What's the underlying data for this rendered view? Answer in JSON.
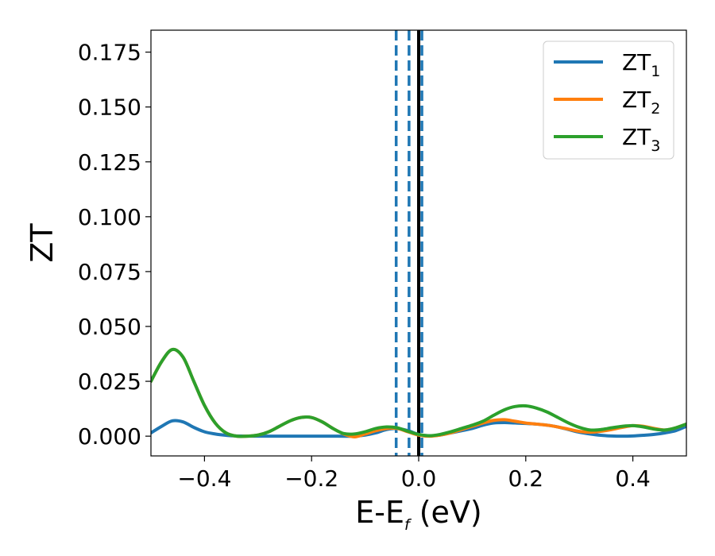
{
  "chart_data": {
    "type": "line",
    "xlabel": {
      "main": "E-E",
      "sub": "f",
      "suffix": " (eV)"
    },
    "ylabel": "ZT",
    "xlim": [
      -0.5,
      0.5
    ],
    "ylim": [
      -0.009,
      0.185
    ],
    "xticks": [
      -0.4,
      -0.2,
      0.0,
      0.2,
      0.4
    ],
    "xtick_labels": [
      "−0.4",
      "−0.2",
      "0.0",
      "0.2",
      "0.4"
    ],
    "yticks": [
      0.0,
      0.025,
      0.05,
      0.075,
      0.1,
      0.125,
      0.15,
      0.175
    ],
    "ytick_labels": [
      "0.000",
      "0.025",
      "0.050",
      "0.075",
      "0.100",
      "0.125",
      "0.150",
      "0.175"
    ],
    "legend_position": "top-right",
    "reference_lines": [
      {
        "x": -0.042,
        "style": "dashed",
        "color": "#1f77b4"
      },
      {
        "x": -0.018,
        "style": "dashed",
        "color": "#1f77b4"
      },
      {
        "x": 0.006,
        "style": "dashed",
        "color": "#1f77b4"
      },
      {
        "x": 0.0,
        "style": "solid",
        "color": "#000000"
      }
    ],
    "series": [
      {
        "name": "ZT",
        "sub": "1",
        "color": "#1f77b4",
        "x": [
          -0.5,
          -0.48,
          -0.46,
          -0.44,
          -0.42,
          -0.4,
          -0.38,
          -0.36,
          -0.34,
          -0.3,
          -0.25,
          -0.2,
          -0.15,
          -0.12,
          -0.1,
          -0.08,
          -0.06,
          -0.04,
          -0.02,
          0.0,
          0.02,
          0.04,
          0.06,
          0.08,
          0.1,
          0.12,
          0.14,
          0.16,
          0.18,
          0.2,
          0.22,
          0.24,
          0.26,
          0.28,
          0.3,
          0.32,
          0.34,
          0.36,
          0.38,
          0.4,
          0.42,
          0.44,
          0.46,
          0.48,
          0.5
        ],
        "y": [
          0.0015,
          0.0045,
          0.007,
          0.0065,
          0.004,
          0.002,
          0.001,
          0.0004,
          0.0001,
          0.0,
          0.0,
          0.0,
          0.0,
          0.0,
          0.0005,
          0.0015,
          0.003,
          0.0035,
          0.0025,
          0.0008,
          0.0002,
          0.0005,
          0.0015,
          0.0025,
          0.0035,
          0.005,
          0.006,
          0.0062,
          0.006,
          0.0058,
          0.0055,
          0.005,
          0.0042,
          0.003,
          0.0018,
          0.001,
          0.0004,
          0.0001,
          0.0,
          0.0001,
          0.0004,
          0.0008,
          0.0015,
          0.0025,
          0.0045
        ]
      },
      {
        "name": "ZT",
        "sub": "2",
        "color": "#ff7f0e",
        "x": [
          -0.5,
          -0.48,
          -0.46,
          -0.44,
          -0.42,
          -0.4,
          -0.38,
          -0.36,
          -0.34,
          -0.32,
          -0.3,
          -0.28,
          -0.26,
          -0.24,
          -0.22,
          -0.2,
          -0.18,
          -0.16,
          -0.14,
          -0.12,
          -0.1,
          -0.08,
          -0.06,
          -0.04,
          -0.02,
          0.0,
          0.02,
          0.04,
          0.06,
          0.08,
          0.1,
          0.12,
          0.14,
          0.16,
          0.18,
          0.2,
          0.22,
          0.24,
          0.26,
          0.28,
          0.3,
          0.32,
          0.34,
          0.36,
          0.38,
          0.4,
          0.42,
          0.44,
          0.46,
          0.48,
          0.5
        ],
        "y": [
          0.025,
          0.034,
          0.0395,
          0.036,
          0.025,
          0.014,
          0.006,
          0.0015,
          0.0,
          0.0,
          0.0005,
          0.002,
          0.0045,
          0.007,
          0.0085,
          0.0085,
          0.0065,
          0.0035,
          0.001,
          -0.0003,
          0.001,
          0.0025,
          0.0035,
          0.0035,
          0.002,
          0.0005,
          0.0,
          0.0005,
          0.0015,
          0.003,
          0.0045,
          0.006,
          0.0072,
          0.0075,
          0.0068,
          0.006,
          0.0055,
          0.005,
          0.0042,
          0.0032,
          0.0022,
          0.0018,
          0.0022,
          0.003,
          0.004,
          0.0048,
          0.0045,
          0.0035,
          0.0028,
          0.0038,
          0.0055
        ]
      },
      {
        "name": "ZT",
        "sub": "3",
        "color": "#2ca02c",
        "x": [
          -0.5,
          -0.48,
          -0.46,
          -0.44,
          -0.42,
          -0.4,
          -0.38,
          -0.36,
          -0.34,
          -0.32,
          -0.3,
          -0.28,
          -0.26,
          -0.24,
          -0.22,
          -0.2,
          -0.18,
          -0.16,
          -0.14,
          -0.12,
          -0.1,
          -0.08,
          -0.06,
          -0.04,
          -0.02,
          0.0,
          0.02,
          0.04,
          0.06,
          0.08,
          0.1,
          0.12,
          0.14,
          0.16,
          0.18,
          0.2,
          0.22,
          0.24,
          0.26,
          0.28,
          0.3,
          0.32,
          0.34,
          0.36,
          0.38,
          0.4,
          0.42,
          0.44,
          0.46,
          0.48,
          0.5
        ],
        "y": [
          0.025,
          0.034,
          0.0395,
          0.036,
          0.025,
          0.014,
          0.006,
          0.0015,
          0.0,
          0.0,
          0.0005,
          0.002,
          0.0045,
          0.007,
          0.0085,
          0.0085,
          0.0065,
          0.0035,
          0.0012,
          0.001,
          0.002,
          0.0035,
          0.0042,
          0.0038,
          0.0022,
          0.0008,
          0.0002,
          0.0008,
          0.002,
          0.0035,
          0.005,
          0.0068,
          0.0095,
          0.012,
          0.0135,
          0.0138,
          0.0128,
          0.011,
          0.0085,
          0.006,
          0.004,
          0.0028,
          0.003,
          0.0038,
          0.0045,
          0.0048,
          0.0042,
          0.0032,
          0.0028,
          0.0038,
          0.0055
        ]
      }
    ]
  }
}
